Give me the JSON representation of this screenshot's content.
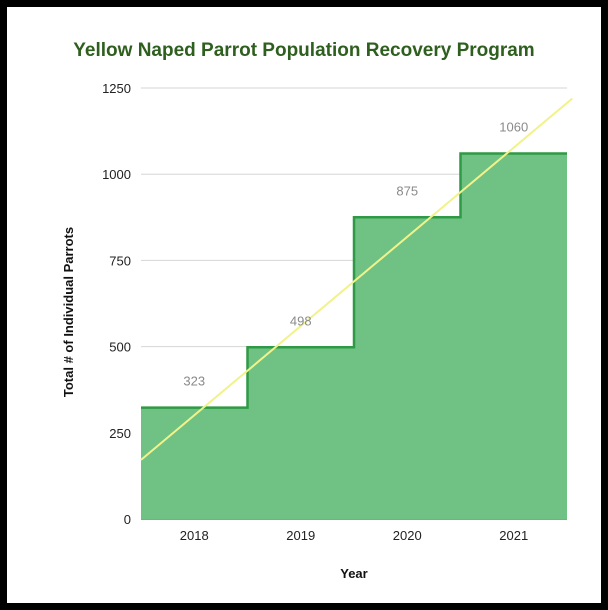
{
  "chart_data": {
    "type": "area",
    "title": "Yellow Naped Parrot Population Recovery Program",
    "xlabel": "Year",
    "ylabel": "Total # of Individual Parrots",
    "categories": [
      "2018",
      "2019",
      "2020",
      "2021"
    ],
    "series": [
      {
        "values": [
          323,
          498,
          875,
          1060
        ],
        "step": true
      }
    ],
    "trendline": {
      "color": "#f2f28a"
    },
    "ylim": [
      0,
      1250
    ],
    "yticks": [
      0,
      250,
      500,
      750,
      1000,
      1250
    ],
    "grid": true,
    "colors": {
      "fill": "#6fc283",
      "stroke": "#2f9a45",
      "title": "#2e5f1e"
    }
  }
}
